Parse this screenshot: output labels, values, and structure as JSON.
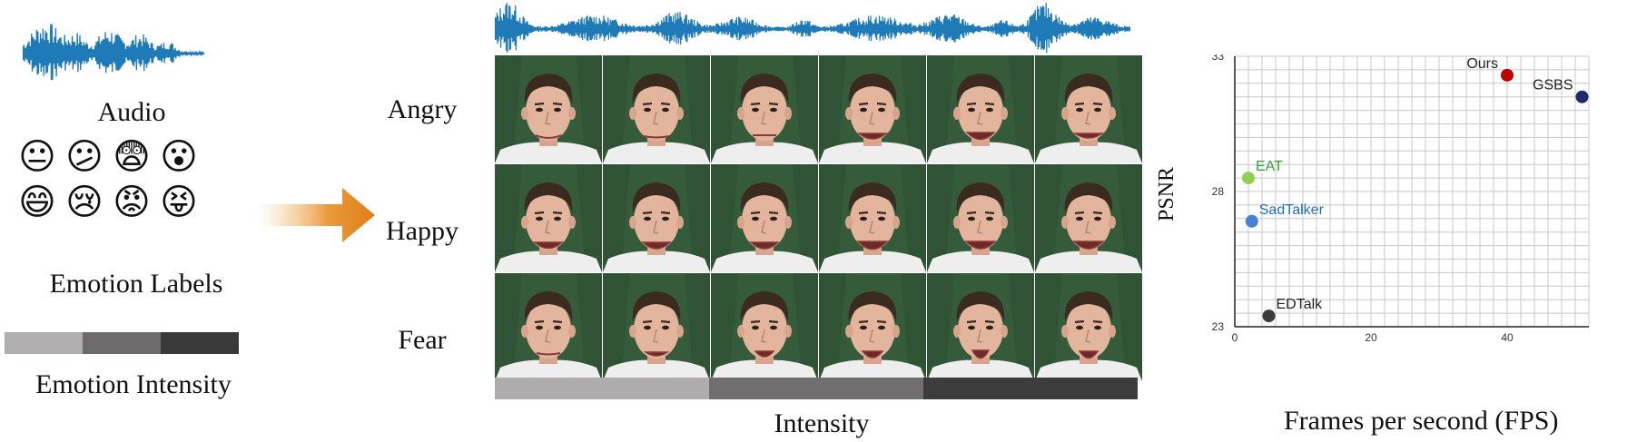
{
  "left_panel": {
    "audio_label": "Audio",
    "emotion_labels_title": "Emotion Labels",
    "emotion_intensity_title": "Emotion Intensity",
    "emojis": [
      "neutral-face",
      "confused-face",
      "fearful-face",
      "surprised-face",
      "grinning-face",
      "crying-face",
      "angry-face",
      "squinting-tongue-face"
    ],
    "intensity_colors": [
      "#b1aeaf",
      "#6d6b6c",
      "#3b3a3a"
    ]
  },
  "grid": {
    "rows": [
      "Angry",
      "Happy",
      "Fear"
    ],
    "x_label": "Intensity",
    "intensity_colors": [
      "#aeacad",
      "#706e6f",
      "#3d3c3c"
    ],
    "waveform_color": "#1f7ab8",
    "background_color": "#365c3a"
  },
  "chart_data": {
    "type": "scatter",
    "xlabel": "Frames per second (FPS)",
    "ylabel": "PSNR",
    "xlim": [
      0,
      52
    ],
    "ylim": [
      23,
      33
    ],
    "x_ticks": [
      "0",
      "20",
      "40"
    ],
    "y_ticks": [
      "23",
      "28",
      "33"
    ],
    "grid": true,
    "points": [
      {
        "name": "Ours",
        "x": 40,
        "y": 32.3,
        "color": "#c00000",
        "label_color": "#222222"
      },
      {
        "name": "GSBS",
        "x": 51,
        "y": 31.5,
        "color": "#1b2a6b",
        "label_color": "#222222"
      },
      {
        "name": "EAT",
        "x": 2,
        "y": 28.5,
        "color": "#92d050",
        "label_color": "#2fa33a"
      },
      {
        "name": "SadTalker",
        "x": 2.5,
        "y": 26.9,
        "color": "#4a7fd6",
        "label_color": "#1f6fb0"
      },
      {
        "name": "EDTalk",
        "x": 5,
        "y": 23.4,
        "color": "#3a3a3a",
        "label_color": "#222222"
      }
    ]
  }
}
